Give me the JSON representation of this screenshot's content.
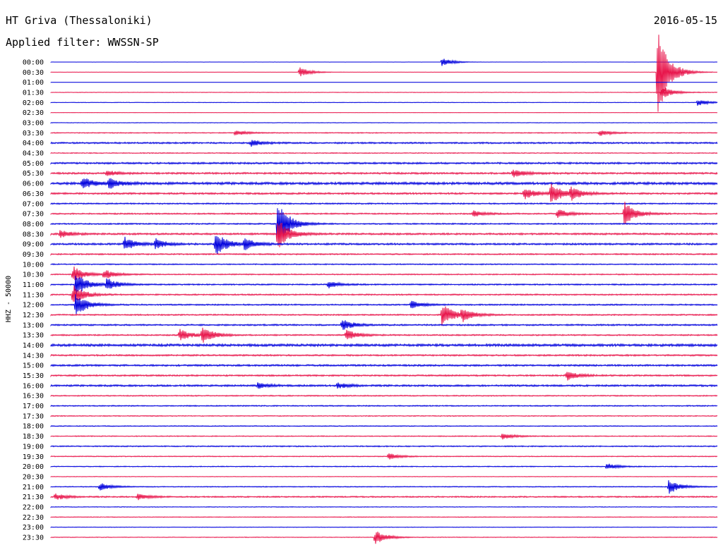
{
  "header": {
    "station": "HT Griva (Thessaloniki)",
    "date": "2016-05-15",
    "filter_label": "Applied filter: WWSSN-SP"
  },
  "chart_data": {
    "type": "line",
    "title": "HT Griva (Thessaloniki)",
    "ylabel": "HHZ - 50000",
    "xlabel": "",
    "colors": [
      "#0000dd",
      "#e8154b"
    ],
    "row_labels": [
      "00:00",
      "00:30",
      "01:00",
      "01:30",
      "02:00",
      "02:30",
      "03:00",
      "03:30",
      "04:00",
      "04:30",
      "05:00",
      "05:30",
      "06:00",
      "06:30",
      "07:00",
      "07:30",
      "08:00",
      "08:30",
      "09:00",
      "09:30",
      "10:00",
      "10:30",
      "11:00",
      "11:30",
      "12:00",
      "12:30",
      "13:00",
      "13:30",
      "14:00",
      "14:30",
      "15:00",
      "15:30",
      "16:00",
      "16:30",
      "17:00",
      "17:30",
      "18:00",
      "18:30",
      "19:00",
      "19:30",
      "20:00",
      "20:30",
      "21:00",
      "21:30",
      "22:00",
      "22:30",
      "23:00",
      "23:30"
    ],
    "noise_level": [
      0.05,
      0.05,
      0.04,
      0.12,
      0.12,
      0.08,
      0.12,
      0.2,
      0.35,
      0.2,
      0.4,
      0.4,
      0.55,
      0.4,
      0.3,
      0.3,
      0.3,
      0.4,
      0.4,
      0.3,
      0.25,
      0.25,
      0.3,
      0.3,
      0.3,
      0.3,
      0.35,
      0.3,
      0.55,
      0.35,
      0.4,
      0.35,
      0.4,
      0.25,
      0.25,
      0.2,
      0.2,
      0.2,
      0.25,
      0.2,
      0.2,
      0.12,
      0.2,
      0.3,
      0.15,
      0.15,
      0.12,
      0.15
    ],
    "events": [
      {
        "row": 0,
        "minute": 17.6,
        "amp": 1.0
      },
      {
        "row": 1,
        "minute": 11.2,
        "amp": 1.2
      },
      {
        "row": 1,
        "minute": 27.3,
        "amp": 12.0
      },
      {
        "row": 3,
        "minute": 27.5,
        "amp": 1.6
      },
      {
        "row": 4,
        "minute": 29.1,
        "amp": 0.8
      },
      {
        "row": 7,
        "minute": 8.3,
        "amp": 0.7
      },
      {
        "row": 7,
        "minute": 24.7,
        "amp": 0.8
      },
      {
        "row": 8,
        "minute": 9.0,
        "amp": 0.8
      },
      {
        "row": 11,
        "minute": 2.5,
        "amp": 0.7
      },
      {
        "row": 11,
        "minute": 20.8,
        "amp": 1.0
      },
      {
        "row": 12,
        "minute": 1.4,
        "amp": 1.5
      },
      {
        "row": 12,
        "minute": 2.6,
        "amp": 1.2
      },
      {
        "row": 13,
        "minute": 21.3,
        "amp": 1.4
      },
      {
        "row": 13,
        "minute": 22.5,
        "amp": 2.5
      },
      {
        "row": 13,
        "minute": 23.4,
        "amp": 1.5
      },
      {
        "row": 15,
        "minute": 19.0,
        "amp": 0.8
      },
      {
        "row": 15,
        "minute": 22.8,
        "amp": 1.2
      },
      {
        "row": 15,
        "minute": 25.8,
        "amp": 3.0
      },
      {
        "row": 16,
        "minute": 10.2,
        "amp": 6.0
      },
      {
        "row": 17,
        "minute": 0.4,
        "amp": 1.0
      },
      {
        "row": 17,
        "minute": 10.2,
        "amp": 4.0
      },
      {
        "row": 18,
        "minute": 3.3,
        "amp": 1.8
      },
      {
        "row": 18,
        "minute": 4.7,
        "amp": 1.2
      },
      {
        "row": 18,
        "minute": 7.4,
        "amp": 3.0
      },
      {
        "row": 18,
        "minute": 8.7,
        "amp": 1.4
      },
      {
        "row": 21,
        "minute": 1.0,
        "amp": 2.0
      },
      {
        "row": 21,
        "minute": 2.4,
        "amp": 1.2
      },
      {
        "row": 22,
        "minute": 1.1,
        "amp": 3.0
      },
      {
        "row": 22,
        "minute": 2.5,
        "amp": 1.5
      },
      {
        "row": 22,
        "minute": 12.5,
        "amp": 0.8
      },
      {
        "row": 23,
        "minute": 1.0,
        "amp": 2.5
      },
      {
        "row": 24,
        "minute": 1.1,
        "amp": 3.0
      },
      {
        "row": 24,
        "minute": 16.2,
        "amp": 1.0
      },
      {
        "row": 25,
        "minute": 17.6,
        "amp": 3.0
      },
      {
        "row": 25,
        "minute": 18.5,
        "amp": 1.5
      },
      {
        "row": 26,
        "minute": 13.1,
        "amp": 1.5
      },
      {
        "row": 27,
        "minute": 5.8,
        "amp": 1.5
      },
      {
        "row": 27,
        "minute": 6.8,
        "amp": 2.0
      },
      {
        "row": 27,
        "minute": 13.3,
        "amp": 1.3
      },
      {
        "row": 31,
        "minute": 23.2,
        "amp": 1.2
      },
      {
        "row": 32,
        "minute": 9.3,
        "amp": 0.7
      },
      {
        "row": 32,
        "minute": 12.9,
        "amp": 0.7
      },
      {
        "row": 37,
        "minute": 20.3,
        "amp": 0.8
      },
      {
        "row": 39,
        "minute": 15.2,
        "amp": 0.8
      },
      {
        "row": 40,
        "minute": 25.0,
        "amp": 0.8
      },
      {
        "row": 42,
        "minute": 2.2,
        "amp": 1.0
      },
      {
        "row": 42,
        "minute": 27.8,
        "amp": 1.8
      },
      {
        "row": 43,
        "minute": 0.2,
        "amp": 0.8
      },
      {
        "row": 43,
        "minute": 3.9,
        "amp": 0.8
      },
      {
        "row": 47,
        "minute": 14.6,
        "amp": 1.8
      }
    ]
  },
  "y_axis": {
    "label": "HHZ - 50000"
  }
}
